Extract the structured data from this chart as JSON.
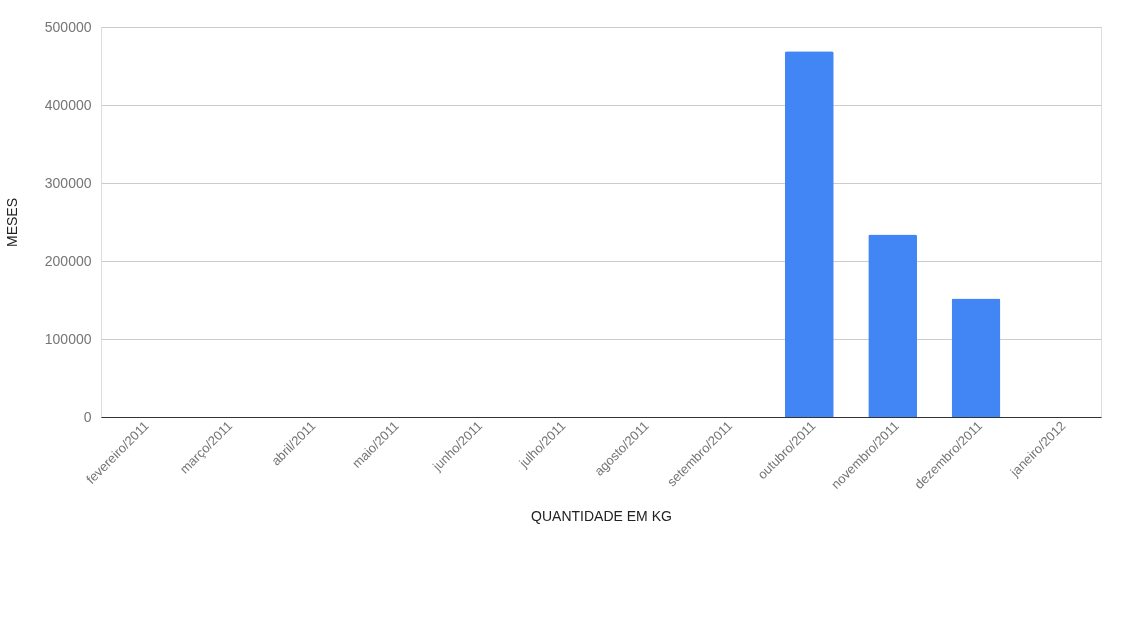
{
  "chart_data": {
    "type": "bar",
    "xlabel": "QUANTIDADE EM KG",
    "ylabel": "MESES",
    "categories": [
      "fevereiro/2011",
      "março/2011",
      "abril/2011",
      "maio/2011",
      "junho/2011",
      "julho/2011",
      "agosto/2011",
      "setembro/2011",
      "outubro/2011",
      "novembro/2011",
      "dezembro/2011",
      "janeiro/2012"
    ],
    "values": [
      0,
      0,
      0,
      0,
      0,
      0,
      0,
      0,
      469000,
      234000,
      152000,
      0
    ],
    "color": "#4285f4",
    "ylim": [
      0,
      500000
    ],
    "yticks": [
      0,
      100000,
      200000,
      300000,
      400000,
      500000
    ],
    "grid": "y"
  }
}
